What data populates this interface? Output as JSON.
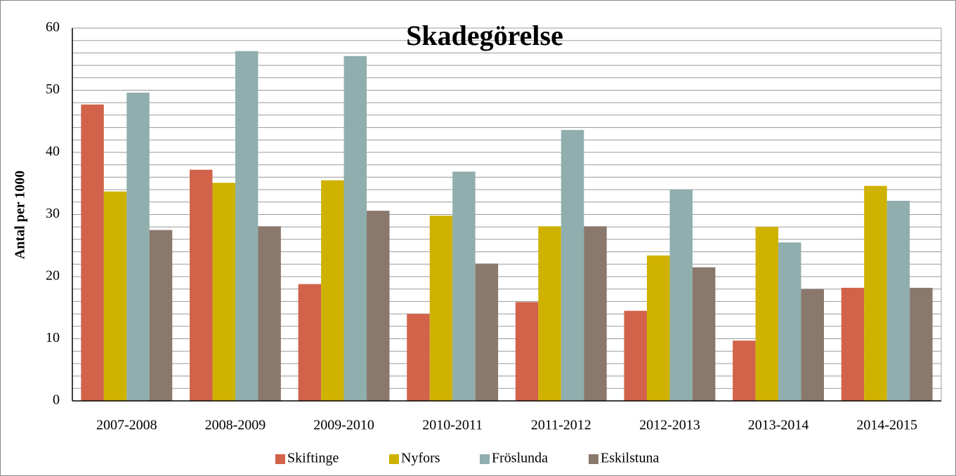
{
  "chart_data": {
    "type": "bar",
    "title": "Skadegörelse",
    "y_label": "Antal per 1000",
    "categories": [
      "2007-2008",
      "2008-2009",
      "2009-2010",
      "2010-2011",
      "2011-2012",
      "2012-2013",
      "2013-2014",
      "2014-2015"
    ],
    "series": [
      {
        "name": "Skiftinge",
        "color": "#d2634a",
        "values": [
          47.7,
          37.2,
          18.8,
          14.0,
          15.9,
          14.5,
          9.7,
          18.2
        ]
      },
      {
        "name": "Nyfors",
        "color": "#cfb200",
        "values": [
          33.7,
          35.1,
          35.5,
          29.8,
          28.1,
          23.4,
          28.0,
          34.6
        ]
      },
      {
        "name": "Fröslunda",
        "color": "#8faead",
        "values": [
          49.6,
          56.3,
          55.5,
          36.9,
          43.6,
          34.0,
          25.5,
          32.2
        ]
      },
      {
        "name": "Eskilstuna",
        "color": "#8b786d",
        "values": [
          27.5,
          28.1,
          30.6,
          22.1,
          28.1,
          21.5,
          18.0,
          18.2
        ]
      }
    ],
    "ylim": [
      0,
      60
    ],
    "yticks": [
      0,
      10,
      20,
      30,
      40,
      50,
      60
    ],
    "grid": true,
    "minor_grid_step": 2,
    "legend": "bottom"
  }
}
